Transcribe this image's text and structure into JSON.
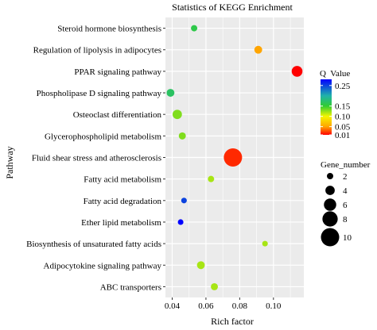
{
  "chart_data": {
    "type": "scatter",
    "title": "Statistics of KEGG Enrichment",
    "xlabel": "Rich factor",
    "ylabel": "Pathway",
    "xlim": [
      0.036,
      0.118
    ],
    "xticks": [
      0.04,
      0.06,
      0.08,
      0.1
    ],
    "xtick_labels": [
      "0.04",
      "0.06",
      "0.08",
      "0.10"
    ],
    "grid": true,
    "panel_background": "#ebebeb",
    "points": [
      {
        "pathway": "Steroid hormone biosynthesis",
        "rich_factor": 0.053,
        "q_value": 0.16,
        "gene_number": 2
      },
      {
        "pathway": "Regulation of lipolysis in adipocytes",
        "rich_factor": 0.091,
        "q_value": 0.05,
        "gene_number": 3
      },
      {
        "pathway": "PPAR signaling pathway",
        "rich_factor": 0.114,
        "q_value": 0.01,
        "gene_number": 5
      },
      {
        "pathway": "Phospholipase D signaling pathway",
        "rich_factor": 0.039,
        "q_value": 0.17,
        "gene_number": 3
      },
      {
        "pathway": "Osteoclast differentiation",
        "rich_factor": 0.043,
        "q_value": 0.13,
        "gene_number": 4
      },
      {
        "pathway": "Glycerophospholipid metabolism",
        "rich_factor": 0.046,
        "q_value": 0.13,
        "gene_number": 2.5
      },
      {
        "pathway": "Fluid shear stress and atherosclerosis",
        "rich_factor": 0.076,
        "q_value": 0.02,
        "gene_number": 10
      },
      {
        "pathway": "Fatty acid metabolism",
        "rich_factor": 0.063,
        "q_value": 0.12,
        "gene_number": 2
      },
      {
        "pathway": "Fatty acid degradation",
        "rich_factor": 0.047,
        "q_value": 0.25,
        "gene_number": 1.5
      },
      {
        "pathway": "Ether lipid metabolism",
        "rich_factor": 0.045,
        "q_value": 0.28,
        "gene_number": 1.5
      },
      {
        "pathway": "Biosynthesis of unsaturated fatty acids",
        "rich_factor": 0.095,
        "q_value": 0.12,
        "gene_number": 1.5
      },
      {
        "pathway": "Adipocytokine signaling pathway",
        "rich_factor": 0.057,
        "q_value": 0.12,
        "gene_number": 3
      },
      {
        "pathway": "ABC transporters",
        "rich_factor": 0.065,
        "q_value": 0.12,
        "gene_number": 2.5
      }
    ],
    "color_legend": {
      "title": "Q  Value",
      "min": 0.01,
      "max": 0.28,
      "ticks": [
        0.25,
        0.15,
        0.1,
        0.05,
        0.01
      ],
      "tick_labels": [
        "0.25",
        "0.15",
        "0.10",
        "0.05",
        "0.01"
      ],
      "stops": [
        {
          "q": 0.01,
          "color": "#ff0000"
        },
        {
          "q": 0.05,
          "color": "#ffa500"
        },
        {
          "q": 0.1,
          "color": "#f5f500"
        },
        {
          "q": 0.15,
          "color": "#32cd32"
        },
        {
          "q": 0.2,
          "color": "#20b2aa"
        },
        {
          "q": 0.28,
          "color": "#0000ff"
        }
      ]
    },
    "size_legend": {
      "title": "Gene_number",
      "values": [
        2,
        4,
        6,
        8,
        10
      ],
      "labels": [
        "2",
        "4",
        "6",
        "8",
        "10"
      ],
      "size_range": [
        1.5,
        10
      ],
      "color": "#000000"
    }
  }
}
